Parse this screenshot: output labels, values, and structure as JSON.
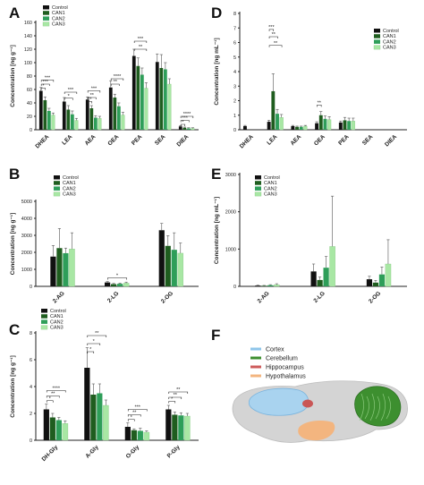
{
  "colors": {
    "Control": "#111111",
    "CAN1": "#1f5d1f",
    "CAN2": "#2e9e59",
    "CAN3": "#a8e7a4"
  },
  "legend": [
    "Control",
    "CAN1",
    "CAN2",
    "CAN3"
  ],
  "chart_data": [
    {
      "panel": "A",
      "type": "bar",
      "ylabel": "Concentration [ng g⁻¹]",
      "ylim": [
        0,
        160
      ],
      "yticks": [
        0,
        20,
        40,
        60,
        80,
        100,
        120,
        140,
        160
      ],
      "categories": [
        "DHEA",
        "LEA",
        "AEA",
        "OEA",
        "PEA",
        "SEA",
        "DIEA"
      ],
      "series": [
        {
          "name": "Control",
          "values": [
            58,
            42,
            45,
            63,
            110,
            101,
            5
          ],
          "err": [
            5,
            6,
            4,
            10,
            10,
            12,
            1
          ]
        },
        {
          "name": "CAN1",
          "values": [
            44,
            30,
            32,
            48,
            95,
            92,
            3
          ],
          "err": [
            5,
            6,
            4,
            5,
            12,
            20,
            1
          ]
        },
        {
          "name": "CAN2",
          "values": [
            28,
            23,
            18,
            35,
            82,
            90,
            2
          ],
          "err": [
            4,
            5,
            3,
            5,
            10,
            10,
            1
          ]
        },
        {
          "name": "CAN3",
          "values": [
            22,
            14,
            17,
            22,
            62,
            68,
            2
          ],
          "err": [
            3,
            3,
            3,
            4,
            8,
            8,
            1
          ]
        }
      ],
      "sig": [
        {
          "cat": 0,
          "a": 0,
          "b": 1,
          "y": 62,
          "t": "*"
        },
        {
          "cat": 0,
          "a": 0,
          "b": 2,
          "y": 68,
          "t": "***"
        },
        {
          "cat": 0,
          "a": 0,
          "b": 3,
          "y": 74,
          "t": "***"
        },
        {
          "cat": 1,
          "a": 0,
          "b": 2,
          "y": 47,
          "t": "*"
        },
        {
          "cat": 1,
          "a": 0,
          "b": 3,
          "y": 56,
          "t": "***"
        },
        {
          "cat": 2,
          "a": 0,
          "b": 1,
          "y": 42,
          "t": "**"
        },
        {
          "cat": 2,
          "a": 0,
          "b": 2,
          "y": 48,
          "t": "**"
        },
        {
          "cat": 2,
          "a": 0,
          "b": 3,
          "y": 58,
          "t": "***"
        },
        {
          "cat": 3,
          "a": 0,
          "b": 2,
          "y": 68,
          "t": "**"
        },
        {
          "cat": 3,
          "a": 0,
          "b": 3,
          "y": 76,
          "t": "****"
        },
        {
          "cat": 4,
          "a": 0,
          "b": 3,
          "y": 120,
          "t": "**"
        },
        {
          "cat": 4,
          "a": 0,
          "b": 3,
          "y": 132,
          "t": "***"
        },
        {
          "cat": 6,
          "a": 0,
          "b": 1,
          "y": 8,
          "t": "*"
        },
        {
          "cat": 6,
          "a": 0,
          "b": 2,
          "y": 14,
          "t": "***"
        },
        {
          "cat": 6,
          "a": 0,
          "b": 3,
          "y": 20,
          "t": "****"
        }
      ]
    },
    {
      "panel": "D",
      "type": "bar",
      "ylabel": "Concentration [ng mL⁻¹]",
      "ylim": [
        0,
        8
      ],
      "yticks": [
        0,
        1,
        2,
        3,
        4,
        5,
        6,
        7,
        8
      ],
      "categories": [
        "DHEA",
        "LEA",
        "AEA",
        "OEA",
        "PEA",
        "SEA",
        "DIEA"
      ],
      "series": [
        {
          "name": "Control",
          "values": [
            0.25,
            0.55,
            0.25,
            0.45,
            0.5,
            0,
            0
          ],
          "err": [
            0.05,
            0.1,
            0.05,
            0.1,
            0.1,
            0,
            0
          ]
        },
        {
          "name": "CAN1",
          "values": [
            0,
            2.65,
            0.2,
            1.0,
            0.65,
            0,
            0
          ],
          "err": [
            0,
            1.2,
            0.05,
            0.25,
            0.2,
            0,
            0
          ]
        },
        {
          "name": "CAN2",
          "values": [
            0,
            1.1,
            0.2,
            0.75,
            0.6,
            0,
            0
          ],
          "err": [
            0,
            0.3,
            0.05,
            0.2,
            0.2,
            0,
            0
          ]
        },
        {
          "name": "CAN3",
          "values": [
            0,
            0.85,
            0.25,
            0.7,
            0.6,
            0,
            0
          ],
          "err": [
            0,
            0.2,
            0.05,
            0.2,
            0.2,
            0,
            0
          ]
        }
      ],
      "sig": [
        {
          "cat": 1,
          "a": 0,
          "b": 1,
          "y": 6.9,
          "t": "***"
        },
        {
          "cat": 1,
          "a": 0,
          "b": 2,
          "y": 6.4,
          "t": "**"
        },
        {
          "cat": 1,
          "a": 0,
          "b": 3,
          "y": 5.8,
          "t": "**"
        },
        {
          "cat": 3,
          "a": 0,
          "b": 1,
          "y": 1.7,
          "t": "**"
        }
      ]
    },
    {
      "panel": "B",
      "type": "bar",
      "ylabel": "Concentration [ng g⁻¹]",
      "ylim": [
        0,
        5000
      ],
      "yticks": [
        0,
        1000,
        2000,
        3000,
        4000,
        5000
      ],
      "categories": [
        "2-AG",
        "2-LG",
        "2-OG"
      ],
      "series": [
        {
          "name": "Control",
          "values": [
            1750,
            230,
            3300
          ],
          "err": [
            650,
            50,
            400
          ]
        },
        {
          "name": "CAN1",
          "values": [
            2250,
            130,
            2380
          ],
          "err": [
            1150,
            40,
            600
          ]
        },
        {
          "name": "CAN2",
          "values": [
            1950,
            150,
            2150
          ],
          "err": [
            300,
            40,
            1000
          ]
        },
        {
          "name": "CAN3",
          "values": [
            2200,
            190,
            1950
          ],
          "err": [
            950,
            60,
            600
          ]
        }
      ],
      "sig": [
        {
          "cat": 1,
          "a": 0,
          "b": 3,
          "y": 500,
          "t": "*"
        }
      ]
    },
    {
      "panel": "E",
      "type": "bar",
      "ylabel": "Concentration [ng mL⁻¹]",
      "ylim": [
        0,
        3000
      ],
      "yticks": [
        0,
        1000,
        2000,
        3000
      ],
      "categories": [
        "2-AG",
        "2-LG",
        "2-OG"
      ],
      "series": [
        {
          "name": "Control",
          "values": [
            20,
            400,
            190
          ],
          "err": [
            10,
            200,
            80
          ]
        },
        {
          "name": "CAN1",
          "values": [
            15,
            170,
            100
          ],
          "err": [
            10,
            80,
            60
          ]
        },
        {
          "name": "CAN2",
          "values": [
            30,
            500,
            320
          ],
          "err": [
            15,
            300,
            200
          ]
        },
        {
          "name": "CAN3",
          "values": [
            40,
            1070,
            600
          ],
          "err": [
            30,
            1350,
            650
          ]
        }
      ],
      "sig": []
    },
    {
      "panel": "C",
      "type": "bar",
      "ylabel": "Concentration [ng g⁻¹]",
      "ylim": [
        0,
        8
      ],
      "yticks": [
        0,
        2,
        4,
        6,
        8
      ],
      "categories": [
        "DH-Gly",
        "A-Gly",
        "O-Gly",
        "P-Gly"
      ],
      "series": [
        {
          "name": "Control",
          "values": [
            2.3,
            5.4,
            1.0,
            2.3
          ],
          "err": [
            0.4,
            1.5,
            0.3,
            0.3
          ]
        },
        {
          "name": "CAN1",
          "values": [
            1.7,
            3.4,
            0.75,
            1.9
          ],
          "err": [
            0.3,
            0.8,
            0.1,
            0.2
          ]
        },
        {
          "name": "CAN2",
          "values": [
            1.5,
            3.5,
            0.7,
            1.85
          ],
          "err": [
            0.2,
            0.7,
            0.2,
            0.2
          ]
        },
        {
          "name": "CAN3",
          "values": [
            1.25,
            2.6,
            0.6,
            1.8
          ],
          "err": [
            0.2,
            0.4,
            0.1,
            0.2
          ]
        }
      ],
      "sig": [
        {
          "cat": 0,
          "a": 0,
          "b": 1,
          "y": 2.95,
          "t": "*"
        },
        {
          "cat": 0,
          "a": 0,
          "b": 2,
          "y": 3.3,
          "t": "**"
        },
        {
          "cat": 0,
          "a": 0,
          "b": 3,
          "y": 3.7,
          "t": "****"
        },
        {
          "cat": 1,
          "a": 0,
          "b": 1,
          "y": 6.6,
          "t": "*"
        },
        {
          "cat": 1,
          "a": 0,
          "b": 2,
          "y": 7.2,
          "t": "*"
        },
        {
          "cat": 1,
          "a": 0,
          "b": 3,
          "y": 7.8,
          "t": "**"
        },
        {
          "cat": 2,
          "a": 0,
          "b": 1,
          "y": 1.55,
          "t": "*"
        },
        {
          "cat": 2,
          "a": 0,
          "b": 2,
          "y": 1.9,
          "t": "**"
        },
        {
          "cat": 2,
          "a": 0,
          "b": 3,
          "y": 2.3,
          "t": "***"
        },
        {
          "cat": 3,
          "a": 0,
          "b": 1,
          "y": 2.9,
          "t": "*"
        },
        {
          "cat": 3,
          "a": 0,
          "b": 2,
          "y": 3.2,
          "t": "**"
        },
        {
          "cat": 3,
          "a": 0,
          "b": 3,
          "y": 3.6,
          "t": "**"
        }
      ]
    }
  ],
  "brain": {
    "panel": "F",
    "legend": [
      {
        "label": "Cortex",
        "color": "#8ec5ea"
      },
      {
        "label": "Cerebellum",
        "color": "#3d8f2f"
      },
      {
        "label": "Hippocampus",
        "color": "#cd5b5b"
      },
      {
        "label": "Hypothalamus",
        "color": "#f3b57f"
      }
    ]
  }
}
